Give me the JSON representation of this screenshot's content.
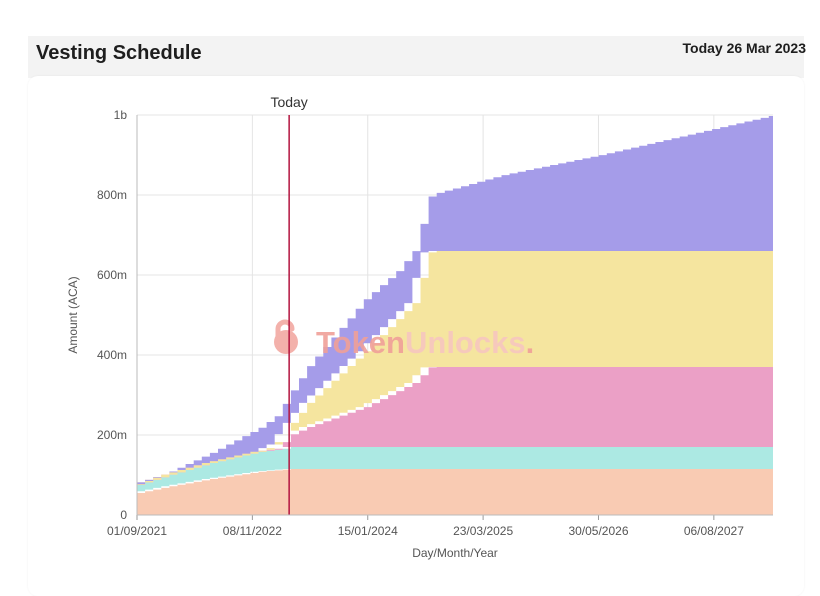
{
  "header": {
    "title": "Vesting Schedule",
    "date": "Today 26 Mar 2023"
  },
  "watermark": {
    "part1": "Token",
    "part2": "Unlocks",
    "dot": "."
  },
  "chart_data": {
    "type": "area",
    "stacked": true,
    "ylabel": "Amount (ACA)",
    "xlabel": "Day/Month/Year",
    "ylim": [
      0,
      1000000000
    ],
    "x_range": [
      "2021-09-01",
      "2028-03-15"
    ],
    "x_ticks": [
      "01/09/2021",
      "08/11/2022",
      "15/01/2024",
      "23/03/2025",
      "30/05/2026",
      "06/08/2027"
    ],
    "y_ticks": [
      "0",
      "200m",
      "400m",
      "600m",
      "800m",
      "1b"
    ],
    "today": {
      "label": "Today",
      "date": "2023-03-26"
    },
    "grid": true,
    "series": [
      {
        "color": "#f9cbb3",
        "points": [
          [
            "2021-09-01",
            55000000
          ],
          [
            "2022-01-01",
            72000000
          ],
          [
            "2022-06-01",
            90000000
          ],
          [
            "2022-12-01",
            108000000
          ],
          [
            "2023-03-26",
            115000000
          ],
          [
            "2028-03-15",
            115000000
          ]
        ]
      },
      {
        "color": "#ace9e3",
        "points": [
          [
            "2021-09-01",
            20000000
          ],
          [
            "2022-06-01",
            40000000
          ],
          [
            "2022-12-01",
            50000000
          ],
          [
            "2023-03-01",
            52000000
          ],
          [
            "2023-03-26",
            55000000
          ],
          [
            "2028-03-15",
            55000000
          ]
        ]
      },
      {
        "color": "#eba0c6",
        "points": [
          [
            "2021-09-01",
            0
          ],
          [
            "2023-02-01",
            0
          ],
          [
            "2023-03-26",
            30000000
          ],
          [
            "2023-06-01",
            50000000
          ],
          [
            "2024-01-01",
            100000000
          ],
          [
            "2024-07-01",
            160000000
          ],
          [
            "2024-09-01",
            200000000
          ],
          [
            "2028-03-15",
            200000000
          ]
        ]
      },
      {
        "color": "#f5e59f",
        "points": [
          [
            "2021-09-01",
            0
          ],
          [
            "2022-12-01",
            0
          ],
          [
            "2023-03-26",
            25000000
          ],
          [
            "2023-06-01",
            60000000
          ],
          [
            "2024-01-01",
            140000000
          ],
          [
            "2024-07-01",
            200000000
          ],
          [
            "2024-09-01",
            290000000
          ],
          [
            "2028-03-15",
            290000000
          ]
        ]
      },
      {
        "color": "#a59ce9",
        "points": [
          [
            "2021-09-01",
            2000000
          ],
          [
            "2022-01-01",
            8000000
          ],
          [
            "2022-06-01",
            25000000
          ],
          [
            "2022-12-01",
            60000000
          ],
          [
            "2023-03-26",
            80000000
          ],
          [
            "2024-01-01",
            130000000
          ],
          [
            "2024-05-01",
            120000000
          ],
          [
            "2024-09-01",
            140000000
          ],
          [
            "2025-06-01",
            190000000
          ],
          [
            "2026-06-01",
            240000000
          ],
          [
            "2028-03-15",
            340000000
          ]
        ]
      }
    ]
  }
}
